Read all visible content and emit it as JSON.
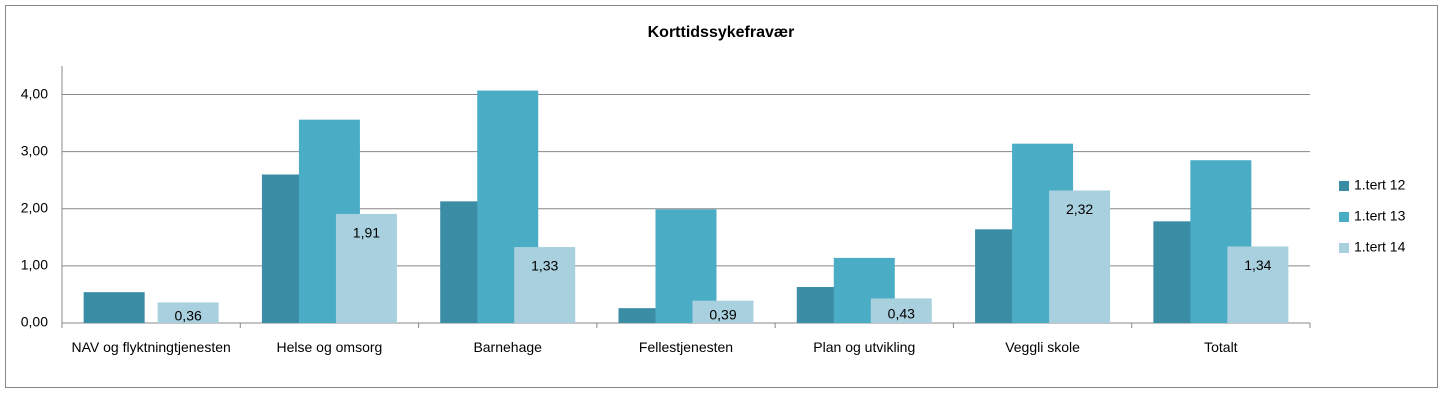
{
  "chart_data": {
    "type": "bar",
    "title": "Korttidssykefravær",
    "categories": [
      "NAV og flyktningtjenesten",
      "Helse og omsorg",
      "Barnehage",
      "Fellestjenesten",
      "Plan og utvikling",
      "Veggli skole",
      "Totalt"
    ],
    "series": [
      {
        "name": "1.tert 12",
        "color": "#3b8ca5",
        "values": [
          0.54,
          2.6,
          2.13,
          0.26,
          0.63,
          1.64,
          1.78
        ]
      },
      {
        "name": "1.tert 13",
        "color": "#4bacc6",
        "values": [
          null,
          3.56,
          4.07,
          1.99,
          1.14,
          3.14,
          2.85
        ]
      },
      {
        "name": "1.tert 14",
        "color": "#a9d0de",
        "values": [
          0.36,
          1.91,
          1.33,
          0.39,
          0.43,
          2.32,
          1.34
        ],
        "value_labels": [
          "0,36",
          "1,91",
          "1,33",
          "0,39",
          "0,43",
          "2,32",
          "1,34"
        ]
      }
    ],
    "ylim": [
      0,
      4.5
    ],
    "yticks": [
      {
        "value": 0,
        "label": "0,00"
      },
      {
        "value": 1,
        "label": "1,00"
      },
      {
        "value": 2,
        "label": "2,00"
      },
      {
        "value": 3,
        "label": "3,00"
      },
      {
        "value": 4,
        "label": "4,00"
      }
    ],
    "grid": true,
    "legend": "right"
  }
}
